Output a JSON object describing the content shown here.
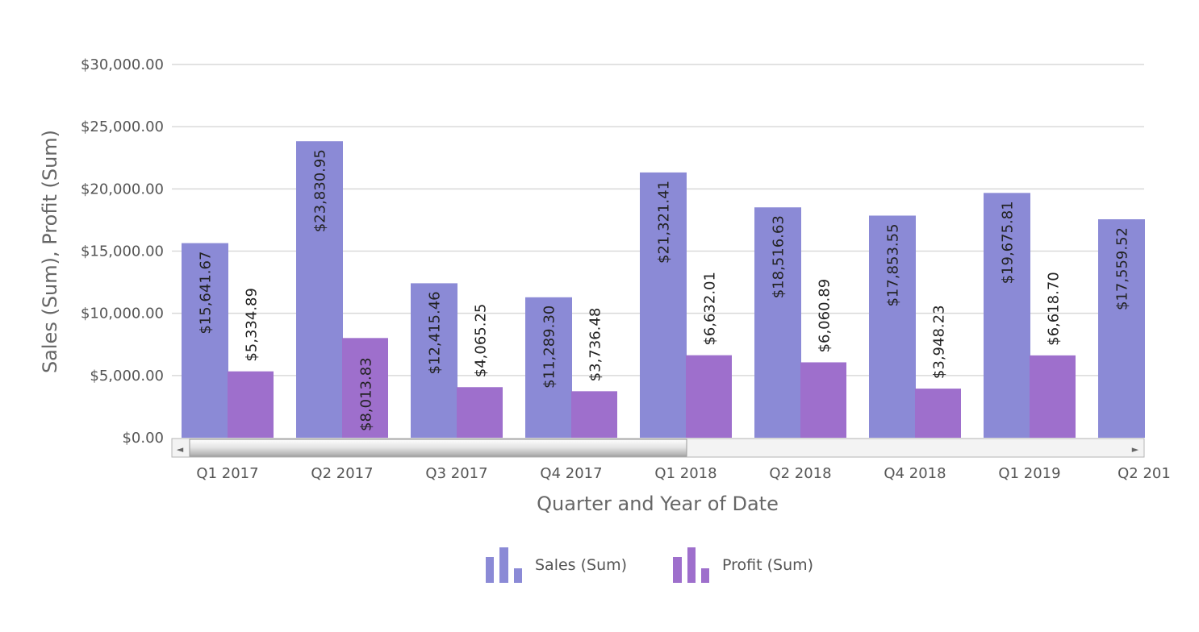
{
  "chart_data": {
    "type": "bar",
    "categories": [
      "Q1 2017",
      "Q2 2017",
      "Q3 2017",
      "Q4 2017",
      "Q1 2018",
      "Q2 2018",
      "Q4 2018",
      "Q1 2019",
      "Q2 201"
    ],
    "series": [
      {
        "name": "Sales (Sum)",
        "color": "#8b8ad6",
        "values": [
          15641.67,
          23830.95,
          12415.46,
          11289.3,
          21321.41,
          18516.63,
          17853.55,
          19675.81,
          17559.52
        ],
        "labels": [
          "$15,641.67",
          "$23,830.95",
          "$12,415.46",
          "$11,289.30",
          "$21,321.41",
          "$18,516.63",
          "$17,853.55",
          "$19,675.81",
          "$17,559.52"
        ]
      },
      {
        "name": "Profit (Sum)",
        "color": "#9e6fcc",
        "values": [
          5334.89,
          8013.83,
          4065.25,
          3736.48,
          6632.01,
          6060.89,
          3948.23,
          6618.7,
          null
        ],
        "labels": [
          "$5,334.89",
          "$8,013.83",
          "$4,065.25",
          "$3,736.48",
          "$6,632.01",
          "$6,060.89",
          "$3,948.23",
          "$6,618.70",
          ""
        ]
      }
    ],
    "y_ticks": [
      "$0.00",
      "$5,000.00",
      "$10,000.00",
      "$15,000.00",
      "$20,000.00",
      "$25,000.00",
      "$30,000.00"
    ],
    "ylim": [
      0,
      30000
    ],
    "xlabel": "Quarter and Year of Date",
    "ylabel": "Sales (Sum), Profit (Sum)",
    "grid": true,
    "legend_position": "bottom-center",
    "scrollbar": {
      "left_arrow": "◄",
      "right_arrow": "►",
      "thumb_fraction": 0.5
    }
  }
}
